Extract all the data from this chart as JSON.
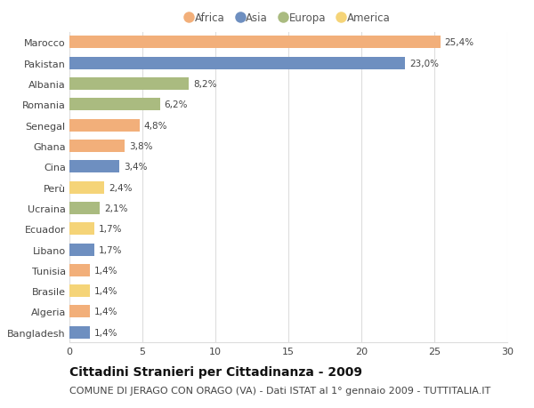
{
  "categories": [
    "Bangladesh",
    "Algeria",
    "Brasile",
    "Tunisia",
    "Libano",
    "Ecuador",
    "Ucraina",
    "Perù",
    "Cina",
    "Ghana",
    "Senegal",
    "Romania",
    "Albania",
    "Pakistan",
    "Marocco"
  ],
  "values": [
    1.4,
    1.4,
    1.4,
    1.4,
    1.7,
    1.7,
    2.1,
    2.4,
    3.4,
    3.8,
    4.8,
    6.2,
    8.2,
    23.0,
    25.4
  ],
  "labels": [
    "1,4%",
    "1,4%",
    "1,4%",
    "1,4%",
    "1,7%",
    "1,7%",
    "2,1%",
    "2,4%",
    "3,4%",
    "3,8%",
    "4,8%",
    "6,2%",
    "8,2%",
    "23,0%",
    "25,4%"
  ],
  "continents": [
    "Asia",
    "Africa",
    "America",
    "Africa",
    "Asia",
    "America",
    "Europa",
    "America",
    "Asia",
    "Africa",
    "Africa",
    "Europa",
    "Europa",
    "Asia",
    "Africa"
  ],
  "colors": {
    "Africa": "#F2AF7A",
    "Asia": "#6E8FC0",
    "Europa": "#AABB80",
    "America": "#F5D478"
  },
  "legend_order": [
    "Africa",
    "Asia",
    "Europa",
    "America"
  ],
  "xlim": [
    0,
    30
  ],
  "xticks": [
    0,
    5,
    10,
    15,
    20,
    25,
    30
  ],
  "title": "Cittadini Stranieri per Cittadinanza - 2009",
  "subtitle": "COMUNE DI JERAGO CON ORAGO (VA) - Dati ISTAT al 1° gennaio 2009 - TUTTITALIA.IT",
  "title_fontsize": 10,
  "subtitle_fontsize": 8,
  "bar_height": 0.6,
  "background_color": "#ffffff",
  "grid_color": "#dddddd",
  "label_fontsize": 7.5,
  "ylabel_fontsize": 8,
  "tick_fontsize": 8
}
